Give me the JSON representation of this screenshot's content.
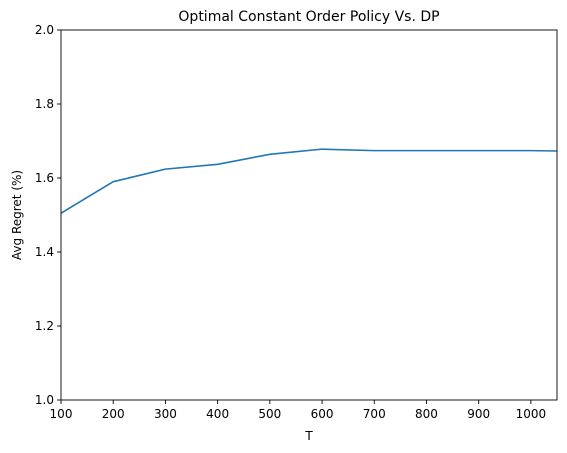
{
  "chart_data": {
    "type": "line",
    "title": "Optimal Constant Order Policy Vs. DP",
    "xlabel": "T",
    "ylabel": "Avg Regret (%)",
    "xlim": [
      100,
      1050
    ],
    "ylim": [
      1.0,
      2.0
    ],
    "xticks": [
      100,
      200,
      300,
      400,
      500,
      600,
      700,
      800,
      900,
      1000
    ],
    "xtick_labels": [
      "100",
      "200",
      "300",
      "400",
      "500",
      "600",
      "700",
      "800",
      "900",
      "1000"
    ],
    "yticks": [
      1.0,
      1.2,
      1.4,
      1.6,
      1.8,
      2.0
    ],
    "ytick_labels": [
      "1.0",
      "1.2",
      "1.4",
      "1.6",
      "1.8",
      "2.0"
    ],
    "grid": false,
    "series": [
      {
        "color": "#1f77b4",
        "x": [
          100,
          200,
          300,
          400,
          500,
          600,
          700,
          800,
          900,
          1000,
          1050
        ],
        "y": [
          1.505,
          1.59,
          1.624,
          1.637,
          1.664,
          1.678,
          1.674,
          1.674,
          1.674,
          1.674,
          1.673
        ]
      }
    ]
  }
}
